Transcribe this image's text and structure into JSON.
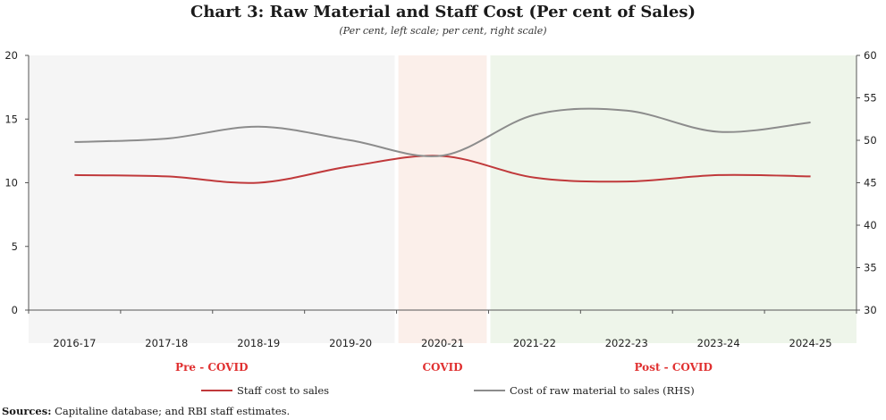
{
  "title": "Chart 3: Raw Material and Staff Cost (Per cent of Sales)",
  "subtitle": "(Per cent, left scale; per cent, right scale)",
  "sources_label": "Sources:",
  "sources_text": "Capitaline database; and RBI staff estimates.",
  "colors": {
    "staff": "#c0393b",
    "raw": "#8c8c8c",
    "pre_covid_bg": "#f5f5f5",
    "covid_bg": "#fbefea",
    "post_covid_bg": "#eef5ea",
    "period_label": "#e03030"
  },
  "chart_data": {
    "type": "line",
    "title": "Chart 3: Raw Material and Staff Cost (Per cent of Sales)",
    "categories": [
      "2016-17",
      "2017-18",
      "2018-19",
      "2019-20",
      "2020-21",
      "2021-22",
      "2022-23",
      "2023-24",
      "2024-25"
    ],
    "left_axis": {
      "min": 0,
      "max": 20,
      "ticks": [
        "0",
        "5",
        "10",
        "15",
        "20"
      ]
    },
    "right_axis": {
      "min": 30,
      "max": 60,
      "ticks": [
        "30",
        "35",
        "40",
        "45",
        "50",
        "55",
        "60"
      ]
    },
    "series": [
      {
        "name": "Staff cost to sales",
        "axis": "left",
        "values": [
          10.6,
          10.5,
          10.0,
          11.3,
          12.1,
          10.4,
          10.1,
          10.6,
          10.5
        ]
      },
      {
        "name": "Cost of raw material to sales (RHS)",
        "axis": "right",
        "values": [
          49.8,
          50.2,
          51.6,
          50.0,
          48.2,
          53.0,
          53.5,
          51.0,
          52.1
        ]
      }
    ],
    "periods": [
      {
        "label": "Pre - COVID",
        "from": "2016-17",
        "to": "2019-20"
      },
      {
        "label": "COVID",
        "from": "2020-21",
        "to": "2020-21"
      },
      {
        "label": "Post - COVID",
        "from": "2021-22",
        "to": "2024-25"
      }
    ],
    "legend_position": "bottom"
  }
}
